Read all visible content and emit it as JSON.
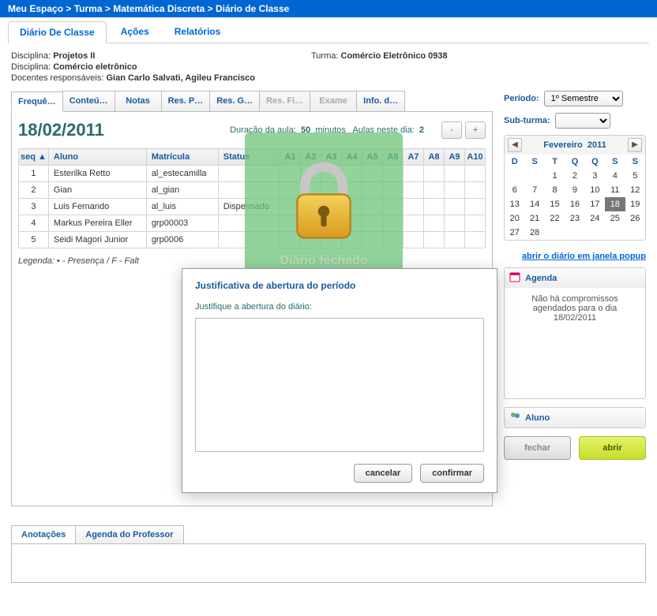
{
  "breadcrumb": [
    "Meu Espaço",
    "Turma",
    "Matemática Discreta",
    "Diário de Classe"
  ],
  "main_tabs": {
    "items": [
      {
        "label": "Diário De Classe",
        "active": true
      },
      {
        "label": "Ações",
        "active": false
      },
      {
        "label": "Relatórios",
        "active": false
      }
    ]
  },
  "meta": {
    "disciplina_lbl": "Disciplina:",
    "disciplina1": "Projetos II",
    "turma_lbl": "Turma:",
    "turma": "Comércio Eletrônico 0938",
    "disciplina2": "Comércio eletrônico",
    "docentes_lbl": "Docentes responsáveis:",
    "docentes": "Gian Carlo Salvati, Agileu Francisco"
  },
  "inner_tabs": [
    {
      "label": "Frequê…",
      "state": "active"
    },
    {
      "label": "Conteú…",
      "state": "normal"
    },
    {
      "label": "Notas",
      "state": "normal"
    },
    {
      "label": "Res. P…",
      "state": "normal"
    },
    {
      "label": "Res. G…",
      "state": "normal"
    },
    {
      "label": "Res. Fi…",
      "state": "disabled"
    },
    {
      "label": "Exame",
      "state": "disabled"
    },
    {
      "label": "Info. d…",
      "state": "normal"
    }
  ],
  "class_header": {
    "date": "18/02/2011",
    "duracao_lbl": "Duração da aula:",
    "duracao_val": "50",
    "duracao_unit": "minutos",
    "aulas_lbl": "Aulas neste dia:",
    "aulas_val": "2",
    "minus": "-",
    "plus": "+"
  },
  "grid": {
    "cols": [
      "seq ▲",
      "Aluno",
      "Matrícula",
      "Status",
      "A1",
      "A2",
      "A3",
      "A4",
      "A5",
      "A6",
      "A7",
      "A8",
      "A9",
      "A10"
    ],
    "rows": [
      {
        "seq": "1",
        "aluno": "Esterilka Retto",
        "matricula": "al_estecamilla",
        "status": ""
      },
      {
        "seq": "2",
        "aluno": "Gian",
        "matricula": "al_gian",
        "status": ""
      },
      {
        "seq": "3",
        "aluno": "Luis Fernando",
        "matricula": "al_luis",
        "status": "Dispensado"
      },
      {
        "seq": "4",
        "aluno": "Markus Pereira Eller",
        "matricula": "grp00003",
        "status": ""
      },
      {
        "seq": "5",
        "aluno": "Seidi Magori Junior",
        "matricula": "grp0006",
        "status": ""
      }
    ]
  },
  "legend": "Legenda:   • - Presença / F - Falt",
  "lock_label": "Diário fechado",
  "modal": {
    "title": "Justificativa de abertura do período",
    "prompt": "Justifique a abertura do diário:",
    "cancel": "cancelar",
    "confirm": "confirmar",
    "value": ""
  },
  "right": {
    "periodo_lbl": "Período:",
    "periodo_val": "1º Semestre",
    "subturma_lbl": "Sub-turma:",
    "subturma_val": "",
    "popup_link": "abrir o diário em janela popup",
    "agenda_title": "Agenda",
    "agenda_body": "Não há compromissos agendados para o dia 18/02/2011",
    "aluno_title": "Aluno",
    "btn_fechar": "fechar",
    "btn_abrir": "abrir"
  },
  "calendar": {
    "month": "Fevereiro",
    "year": "2011",
    "dow": [
      "D",
      "S",
      "T",
      "Q",
      "Q",
      "S",
      "S"
    ],
    "weeks": [
      [
        "",
        "",
        "1",
        "2",
        "3",
        "4",
        "5"
      ],
      [
        "6",
        "7",
        "8",
        "9",
        "10",
        "11",
        "12"
      ],
      [
        "13",
        "14",
        "15",
        "16",
        "17",
        "18",
        "19"
      ],
      [
        "20",
        "21",
        "22",
        "23",
        "24",
        "25",
        "26"
      ],
      [
        "27",
        "28",
        "",
        "",
        "",
        "",
        ""
      ]
    ],
    "today": "18",
    "prev": "◀",
    "next": "▶"
  },
  "notes_tabs": [
    {
      "label": "Anotações",
      "active": true
    },
    {
      "label": "Agenda do Professor",
      "active": false
    }
  ]
}
